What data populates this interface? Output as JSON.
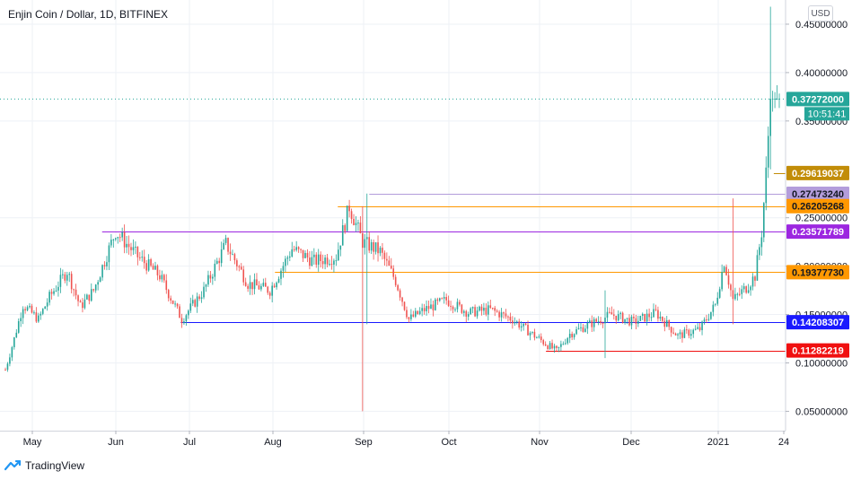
{
  "header": {
    "title": "Enjin Coin / Dollar, 1D, BITFINEX",
    "currency_button": "USD"
  },
  "footer": {
    "brand": "TradingView",
    "logo_icon": "tradingview-logo-icon"
  },
  "colors": {
    "up": "#26a69a",
    "down": "#ef5350",
    "grid": "#eef1f6"
  },
  "chart_data": {
    "type": "candlestick",
    "title": "Enjin Coin / Dollar, 1D, BITFINEX",
    "ylim": [
      0.03,
      0.475
    ],
    "y_ticks": [
      {
        "value": 0.05,
        "label": "0.05000000"
      },
      {
        "value": 0.1,
        "label": "0.10000000"
      },
      {
        "value": 0.15,
        "label": "0.15000000"
      },
      {
        "value": 0.2,
        "label": "0.20000000"
      },
      {
        "value": 0.25,
        "label": "0.25000000"
      },
      {
        "value": 0.35,
        "label": "0.35000000"
      },
      {
        "value": 0.4,
        "label": "0.40000000"
      },
      {
        "value": 0.45,
        "label": "0.45000000"
      }
    ],
    "x_ticks": [
      "May",
      "Jun",
      "Jul",
      "Aug",
      "Sep",
      "Oct",
      "Nov",
      "Dec",
      "2021",
      "24"
    ],
    "levels": [
      {
        "value": 0.29619037,
        "label": "0.29619037",
        "color": "#c28d08",
        "from_frac": 0.985
      },
      {
        "value": 0.2747324,
        "label": "0.27473240",
        "color": "#b39ddb",
        "from_frac": 0.47
      },
      {
        "value": 0.26205268,
        "label": "0.26205268",
        "color": "#ff9800",
        "from_frac": 0.43
      },
      {
        "value": 0.23571789,
        "label": "0.23571789",
        "color": "#9c27e0",
        "from_frac": 0.13
      },
      {
        "value": 0.1937773,
        "label": "0.19377730",
        "color": "#ff9800",
        "from_frac": 0.35
      },
      {
        "value": 0.14208307,
        "label": "0.14208307",
        "color": "#1a1aff",
        "from_frac": 0.23
      },
      {
        "value": 0.11282219,
        "label": "0.11282219",
        "color": "#f01010",
        "from_frac": 0.695
      }
    ],
    "last_price": {
      "value": 0.37272,
      "label": "0.37272000",
      "countdown": "10:51:41",
      "color": "#26a69a"
    },
    "anchors": [
      {
        "d": 0,
        "p": 0.093
      },
      {
        "d": 4,
        "p": 0.125
      },
      {
        "d": 8,
        "p": 0.16
      },
      {
        "d": 15,
        "p": 0.145
      },
      {
        "d": 20,
        "p": 0.168
      },
      {
        "d": 28,
        "p": 0.195
      },
      {
        "d": 34,
        "p": 0.158
      },
      {
        "d": 40,
        "p": 0.175
      },
      {
        "d": 50,
        "p": 0.236
      },
      {
        "d": 60,
        "p": 0.21
      },
      {
        "d": 70,
        "p": 0.19
      },
      {
        "d": 80,
        "p": 0.145
      },
      {
        "d": 90,
        "p": 0.175
      },
      {
        "d": 100,
        "p": 0.223
      },
      {
        "d": 110,
        "p": 0.182
      },
      {
        "d": 120,
        "p": 0.175
      },
      {
        "d": 130,
        "p": 0.218
      },
      {
        "d": 140,
        "p": 0.205
      },
      {
        "d": 150,
        "p": 0.21
      },
      {
        "d": 156,
        "p": 0.262
      },
      {
        "d": 162,
        "p": 0.225
      },
      {
        "d": 170,
        "p": 0.215
      },
      {
        "d": 177,
        "p": 0.185
      },
      {
        "d": 183,
        "p": 0.145
      },
      {
        "d": 190,
        "p": 0.155
      },
      {
        "d": 200,
        "p": 0.165
      },
      {
        "d": 210,
        "p": 0.152
      },
      {
        "d": 220,
        "p": 0.155
      },
      {
        "d": 230,
        "p": 0.145
      },
      {
        "d": 240,
        "p": 0.128
      },
      {
        "d": 250,
        "p": 0.112
      },
      {
        "d": 256,
        "p": 0.13
      },
      {
        "d": 265,
        "p": 0.14
      },
      {
        "d": 275,
        "p": 0.15
      },
      {
        "d": 285,
        "p": 0.142
      },
      {
        "d": 295,
        "p": 0.152
      },
      {
        "d": 305,
        "p": 0.128
      },
      {
        "d": 315,
        "p": 0.135
      },
      {
        "d": 322,
        "p": 0.16
      },
      {
        "d": 326,
        "p": 0.205
      },
      {
        "d": 330,
        "p": 0.165
      },
      {
        "d": 336,
        "p": 0.178
      },
      {
        "d": 340,
        "p": 0.19
      },
      {
        "d": 343,
        "p": 0.235
      },
      {
        "d": 345,
        "p": 0.296
      },
      {
        "d": 347,
        "p": 0.373
      }
    ],
    "spikes": [
      {
        "d": 162,
        "low": 0.05,
        "high": 0.262
      },
      {
        "d": 164,
        "low": 0.14,
        "high": 0.275
      },
      {
        "d": 272,
        "low": 0.105,
        "high": 0.175
      },
      {
        "d": 330,
        "low": 0.14,
        "high": 0.27
      },
      {
        "d": 347,
        "low": 0.3,
        "high": 0.468
      }
    ]
  }
}
